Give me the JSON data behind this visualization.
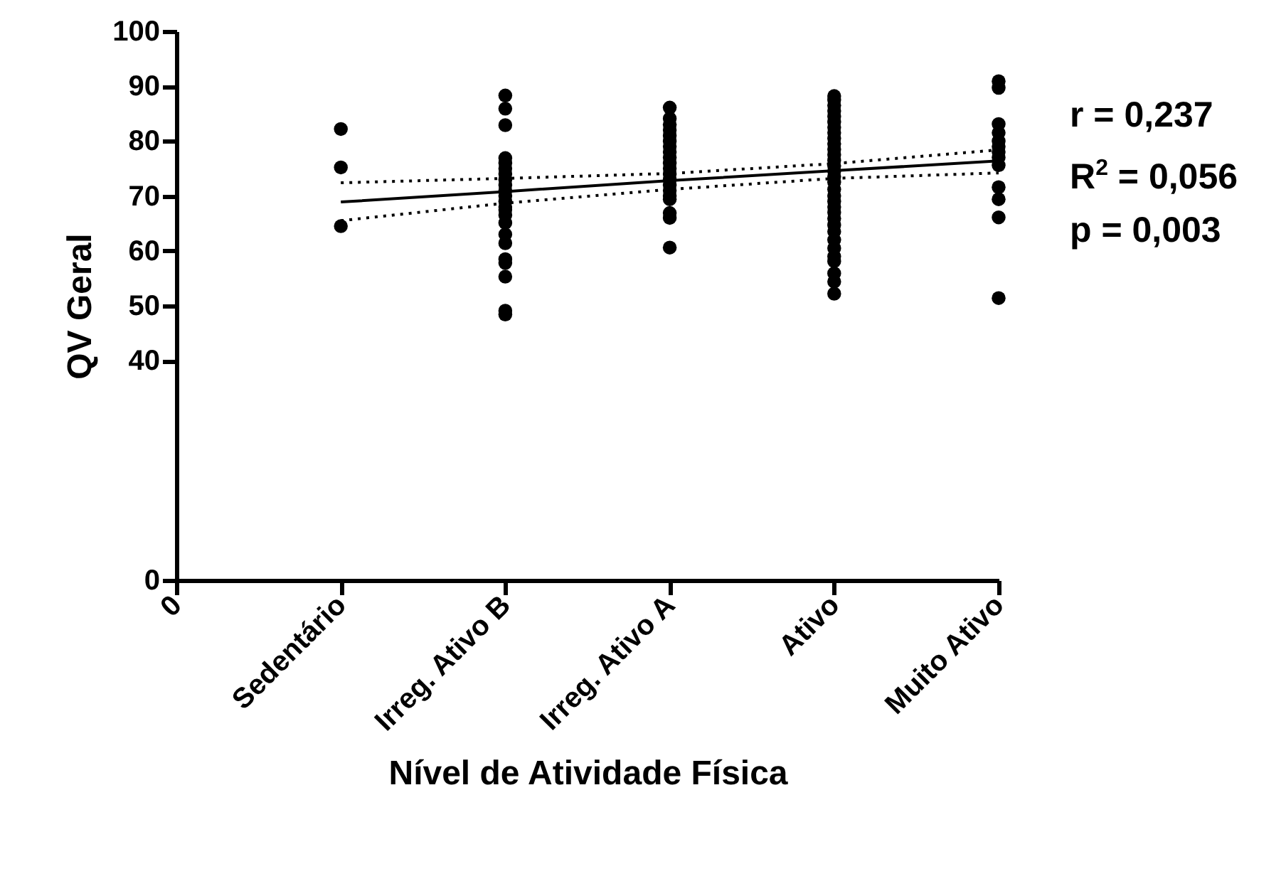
{
  "chart_data": {
    "type": "scatter",
    "xlabel": "Nível de Atividade Física",
    "ylabel": "QV Geral",
    "marker": "circle",
    "grid": false,
    "categories": [
      "0",
      "Sedentário",
      "Irreg. Ativo B",
      "Irreg. Ativo A",
      "Ativo",
      "Muito Ativo"
    ],
    "ylim": [
      0,
      100
    ],
    "yticks": [
      0,
      40,
      50,
      60,
      70,
      80,
      90,
      100
    ],
    "annotations": [
      "r = 0,237",
      "R$^{2}$ = 0,056",
      "p = 0,003"
    ],
    "series": [
      {
        "color": "#000000",
        "x": [
          "Sedentário",
          "Sedentário",
          "Sedentário",
          "Irreg. Ativo B",
          "Irreg. Ativo B",
          "Irreg. Ativo B",
          "Irreg. Ativo B",
          "Irreg. Ativo B",
          "Irreg. Ativo B",
          "Irreg. Ativo B",
          "Irreg. Ativo B",
          "Irreg. Ativo B",
          "Irreg. Ativo B",
          "Irreg. Ativo B",
          "Irreg. Ativo B",
          "Irreg. Ativo B",
          "Irreg. Ativo B",
          "Irreg. Ativo B",
          "Irreg. Ativo B",
          "Irreg. Ativo B",
          "Irreg. Ativo B",
          "Irreg. Ativo B",
          "Irreg. Ativo B",
          "Irreg. Ativo B",
          "Irreg. Ativo B",
          "Irreg. Ativo B",
          "Irreg. Ativo A",
          "Irreg. Ativo A",
          "Irreg. Ativo A",
          "Irreg. Ativo A",
          "Irreg. Ativo A",
          "Irreg. Ativo A",
          "Irreg. Ativo A",
          "Irreg. Ativo A",
          "Irreg. Ativo A",
          "Irreg. Ativo A",
          "Irreg. Ativo A",
          "Irreg. Ativo A",
          "Irreg. Ativo A",
          "Irreg. Ativo A",
          "Irreg. Ativo A",
          "Irreg. Ativo A",
          "Irreg. Ativo A",
          "Irreg. Ativo A",
          "Irreg. Ativo A",
          "Irreg. Ativo A",
          "Ativo",
          "Ativo",
          "Ativo",
          "Ativo",
          "Ativo",
          "Ativo",
          "Ativo",
          "Ativo",
          "Ativo",
          "Ativo",
          "Ativo",
          "Ativo",
          "Ativo",
          "Ativo",
          "Ativo",
          "Ativo",
          "Ativo",
          "Ativo",
          "Ativo",
          "Ativo",
          "Ativo",
          "Ativo",
          "Ativo",
          "Ativo",
          "Ativo",
          "Ativo",
          "Ativo",
          "Ativo",
          "Ativo",
          "Ativo",
          "Ativo",
          "Ativo",
          "Muito Ativo",
          "Muito Ativo",
          "Muito Ativo",
          "Muito Ativo",
          "Muito Ativo",
          "Muito Ativo",
          "Muito Ativo",
          "Muito Ativo",
          "Muito Ativo",
          "Muito Ativo",
          "Muito Ativo",
          "Muito Ativo",
          "Muito Ativo"
        ],
        "values": [
          82.2,
          75.2,
          64.5,
          88.3,
          85.9,
          82.9,
          76.9,
          76,
          75,
          74,
          73,
          72,
          71,
          70,
          69,
          68,
          67.5,
          66.5,
          65.1,
          63,
          61.4,
          58.5,
          57.8,
          55.3,
          49.1,
          48.4,
          86.1,
          84.1,
          83,
          82,
          81,
          80,
          79,
          78,
          77,
          76,
          75,
          74,
          73,
          72,
          71,
          70,
          69.4,
          66.9,
          66,
          60.6,
          88.2,
          87.5,
          86.5,
          85.5,
          84.5,
          83.5,
          82.5,
          81.5,
          80.5,
          79.5,
          78.5,
          77.5,
          76.5,
          75.5,
          74.5,
          73.5,
          72.5,
          71.2,
          70,
          69,
          68,
          67,
          65.9,
          64.7,
          63.5,
          62,
          60.5,
          59,
          58.1,
          55.9,
          54.4,
          52.2,
          90.9,
          89.7,
          83.1,
          81.5,
          80,
          79,
          78,
          77,
          75.6,
          71.6,
          69.4,
          66.1,
          51.4
        ]
      },
      {
        "type": "line",
        "color": "#000000",
        "line_style": "solid",
        "marker": "none",
        "x": [
          "Sedentário",
          "Irreg. Ativo B",
          "Irreg. Ativo A",
          "Ativo",
          "Muito Ativo"
        ],
        "values": [
          68.9,
          70.8,
          72.8,
          74.6,
          76.4
        ]
      },
      {
        "type": "line",
        "color": "#000000",
        "line_style": "dotted",
        "marker": "none",
        "x": [
          "Sedentário",
          "Irreg. Ativo B",
          "Irreg. Ativo A",
          "Ativo",
          "Muito Ativo"
        ],
        "values": [
          72.4,
          73.2,
          74.1,
          75.9,
          78.4
        ]
      },
      {
        "type": "line",
        "color": "#000000",
        "line_style": "dotted",
        "marker": "none",
        "x": [
          "Sedentário",
          "Irreg. Ativo B",
          "Irreg. Ativo A",
          "Ativo",
          "Muito Ativo"
        ],
        "values": [
          65.5,
          68.7,
          71.2,
          73.2,
          74.2
        ]
      }
    ]
  }
}
